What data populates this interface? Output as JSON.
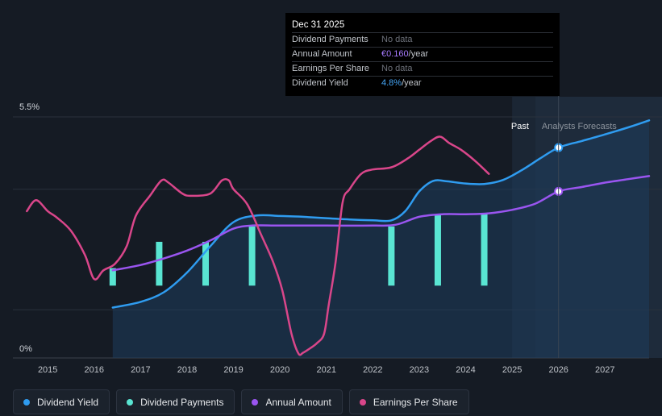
{
  "tooltip": {
    "date": "Dec 31 2025",
    "rows": [
      {
        "label": "Dividend Payments",
        "value": "No data",
        "suffix": ""
      },
      {
        "label": "Annual Amount",
        "value": "€0.160",
        "suffix": "/year"
      },
      {
        "label": "Earnings Per Share",
        "value": "No data",
        "suffix": ""
      },
      {
        "label": "Dividend Yield",
        "value": "4.8%",
        "suffix": "/year"
      }
    ]
  },
  "legend": [
    {
      "label": "Dividend Yield",
      "color": "#2f9cf0"
    },
    {
      "label": "Dividend Payments",
      "color": "#59e5d2"
    },
    {
      "label": "Annual Amount",
      "color": "#9a55f0"
    },
    {
      "label": "Earnings Per Share",
      "color": "#d9468a"
    }
  ],
  "chart_data": {
    "type": "line",
    "title": "",
    "xlabel": "",
    "ylabel": "",
    "xlim": [
      2014.25,
      2027.95
    ],
    "ylim": [
      0,
      5.5
    ],
    "y_tick_labels": [
      "5.5%",
      "0%"
    ],
    "x_ticks": [
      2015,
      2016,
      2017,
      2018,
      2019,
      2020,
      2021,
      2022,
      2023,
      2024,
      2025,
      2026,
      2027
    ],
    "x_tick_labels": [
      "2015",
      "2016",
      "2017",
      "2018",
      "2019",
      "2020",
      "2021",
      "2022",
      "2023",
      "2024",
      "2025",
      "2026",
      "2027"
    ],
    "past_label": "Past",
    "forecast_label": "Analysts Forecasts",
    "forecast_start": 2025.5,
    "highlight_x": 2026.0,
    "series": [
      {
        "name": "Dividend Yield",
        "color": "#2f9cf0",
        "area": true,
        "x": [
          2016.4,
          2017.0,
          2017.5,
          2018.0,
          2018.5,
          2019.0,
          2019.5,
          2020.0,
          2020.5,
          2021.0,
          2021.5,
          2022.0,
          2022.4,
          2022.7,
          2023.0,
          2023.3,
          2023.6,
          2024.0,
          2024.4,
          2024.8,
          2025.2,
          2025.6,
          2026.0,
          2026.5,
          2027.0,
          2027.5,
          2027.95
        ],
        "y": [
          1.15,
          1.28,
          1.5,
          1.95,
          2.55,
          3.1,
          3.25,
          3.24,
          3.22,
          3.19,
          3.16,
          3.14,
          3.14,
          3.35,
          3.8,
          4.04,
          4.03,
          3.98,
          3.97,
          4.06,
          4.28,
          4.55,
          4.8,
          4.95,
          5.1,
          5.26,
          5.42
        ]
      },
      {
        "name": "Annual Amount",
        "color": "#9a55f0",
        "area": false,
        "x": [
          2016.4,
          2017.0,
          2017.5,
          2018.0,
          2018.5,
          2019.0,
          2019.4,
          2020.0,
          2021.0,
          2022.0,
          2022.5,
          2023.0,
          2023.5,
          2024.0,
          2024.5,
          2025.0,
          2025.5,
          2026.0,
          2026.5,
          2027.0,
          2027.5,
          2027.95
        ],
        "y": [
          2.0,
          2.12,
          2.27,
          2.45,
          2.68,
          2.95,
          3.02,
          3.02,
          3.02,
          3.02,
          3.04,
          3.22,
          3.28,
          3.28,
          3.3,
          3.38,
          3.52,
          3.8,
          3.9,
          4.0,
          4.08,
          4.15
        ]
      },
      {
        "name": "Earnings Per Share",
        "color": "#d9468a",
        "area": false,
        "x": [
          2014.55,
          2014.75,
          2015.0,
          2015.2,
          2015.5,
          2015.8,
          2016.0,
          2016.2,
          2016.45,
          2016.7,
          2016.9,
          2017.2,
          2017.45,
          2017.6,
          2017.9,
          2018.1,
          2018.5,
          2018.75,
          2018.9,
          2019.0,
          2019.3,
          2019.6,
          2019.85,
          2020.05,
          2020.25,
          2020.4,
          2020.5,
          2020.65,
          2020.8,
          2020.95,
          2021.05,
          2021.2,
          2021.35,
          2021.5,
          2021.75,
          2022.0,
          2022.4,
          2022.75,
          2023.0,
          2023.25,
          2023.45,
          2023.65,
          2023.9,
          2024.2,
          2024.5
        ],
        "y": [
          3.35,
          3.6,
          3.35,
          3.2,
          2.9,
          2.35,
          1.8,
          2.0,
          2.15,
          2.55,
          3.25,
          3.7,
          4.05,
          4.0,
          3.75,
          3.7,
          3.75,
          4.05,
          4.05,
          3.85,
          3.5,
          2.8,
          2.2,
          1.55,
          0.55,
          0.1,
          0.12,
          0.22,
          0.34,
          0.55,
          1.2,
          2.2,
          3.55,
          3.85,
          4.2,
          4.3,
          4.35,
          4.55,
          4.75,
          4.95,
          5.05,
          4.9,
          4.75,
          4.5,
          4.2
        ]
      }
    ],
    "bars": {
      "name": "Dividend Payments",
      "color": "#59e5d2",
      "x": [
        2016.4,
        2017.4,
        2018.4,
        2019.4,
        2022.4,
        2023.4,
        2024.4
      ],
      "top": [
        2.05,
        2.65,
        2.65,
        3.0,
        3.0,
        3.28,
        3.28
      ],
      "bottom": 1.65
    },
    "markers": [
      {
        "series": "Dividend Yield",
        "x": 2026.0,
        "y": 4.8
      },
      {
        "series": "Annual Amount",
        "x": 2026.0,
        "y": 3.8
      }
    ]
  }
}
